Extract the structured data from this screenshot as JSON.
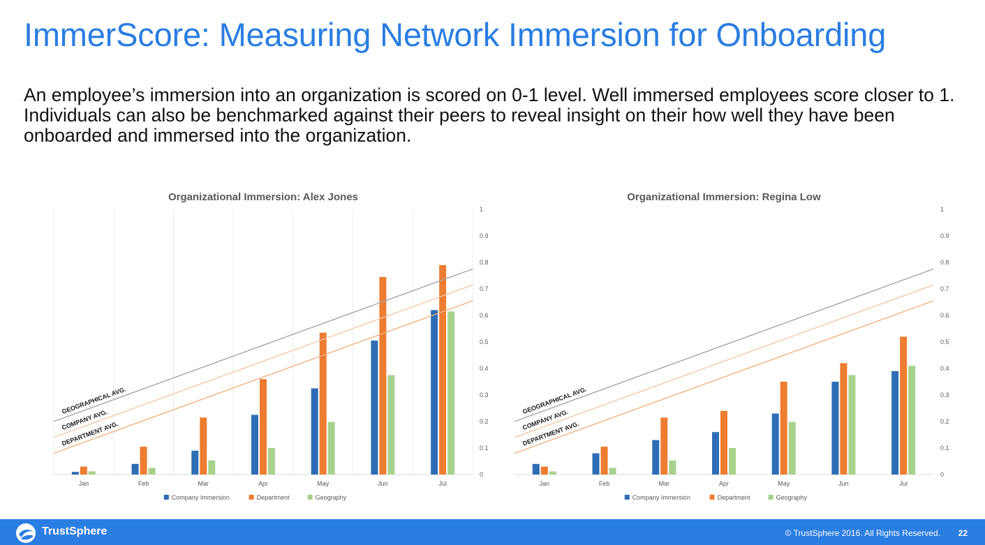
{
  "slide": {
    "title": "ImmerScore: Measuring Network Immersion for Onboarding",
    "body": "An employee’s immersion into an organization is scored on 0-1 level. Well immersed employees score closer to 1. Individuals can also be benchmarked against their peers to reveal insight on their how well they have been onboarded and immersed into the organization."
  },
  "footer": {
    "brand": "TrustSphere",
    "copyright": "© TrustSphere 2016. All Rights Reserved.",
    "page_number": "22"
  },
  "colors": {
    "title": "#2a7de1",
    "footer_bg": "#2a7de1",
    "company": "#2e6db4",
    "department": "#ed7d31",
    "geography": "#a9d18e",
    "geo_line": "#a6a6a6",
    "company_line": "#f4c8a8",
    "department_line": "#f2b27d"
  },
  "chart_data": [
    {
      "type": "bar",
      "title": "Organizational Immersion: Alex Jones",
      "categories": [
        "Jan",
        "Feb",
        "Mar",
        "Apr",
        "May",
        "Jun",
        "Jul"
      ],
      "series": [
        {
          "name": "Company Immersion",
          "values": [
            0.01,
            0.04,
            0.09,
            0.225,
            0.325,
            0.505,
            0.62
          ]
        },
        {
          "name": "Department",
          "values": [
            0.03,
            0.105,
            0.215,
            0.36,
            0.535,
            0.745,
            0.79
          ]
        },
        {
          "name": "Geography",
          "values": [
            0.012,
            0.025,
            0.053,
            0.1,
            0.198,
            0.375,
            0.615
          ]
        }
      ],
      "reference_lines": [
        {
          "label": "GEOGRAPHICAL AVG.",
          "start": 0.2,
          "end": 0.775
        },
        {
          "label": "COMPANY AVG.",
          "start": 0.14,
          "end": 0.715
        },
        {
          "label": "DEPARTMENT AVG.",
          "start": 0.08,
          "end": 0.655
        }
      ],
      "ylim": [
        0,
        1
      ],
      "yticks": [
        "0",
        "0.1",
        "0.2",
        "0.3",
        "0.4",
        "0.5",
        "0.6",
        "0.7",
        "0.8",
        "0.9",
        "1"
      ],
      "y_axis_side": "right",
      "legend": "bottom",
      "grid": "vertical"
    },
    {
      "type": "bar",
      "title": "Organizational Immersion: Regina Low",
      "categories": [
        "Jan",
        "Feb",
        "Mar",
        "Apr",
        "May",
        "Jun",
        "Jul"
      ],
      "series": [
        {
          "name": "Company Immersion",
          "values": [
            0.04,
            0.08,
            0.13,
            0.16,
            0.23,
            0.35,
            0.39
          ]
        },
        {
          "name": "Department",
          "values": [
            0.03,
            0.105,
            0.215,
            0.24,
            0.35,
            0.42,
            0.52
          ]
        },
        {
          "name": "Geography",
          "values": [
            0.012,
            0.025,
            0.053,
            0.1,
            0.198,
            0.375,
            0.41
          ]
        }
      ],
      "reference_lines": [
        {
          "label": "GEOGRAPHICAL AVG.",
          "start": 0.2,
          "end": 0.775
        },
        {
          "label": "COMPANY AVG.",
          "start": 0.14,
          "end": 0.715
        },
        {
          "label": "DEPARTMENT AVG.",
          "start": 0.08,
          "end": 0.655
        }
      ],
      "ylim": [
        0,
        1
      ],
      "yticks": [
        "0",
        "0.1",
        "0.2",
        "0.3",
        "0.4",
        "0.5",
        "0.6",
        "0.7",
        "0.8",
        "0.9",
        "1"
      ],
      "y_axis_side": "right",
      "legend": "bottom",
      "grid": "none"
    }
  ]
}
